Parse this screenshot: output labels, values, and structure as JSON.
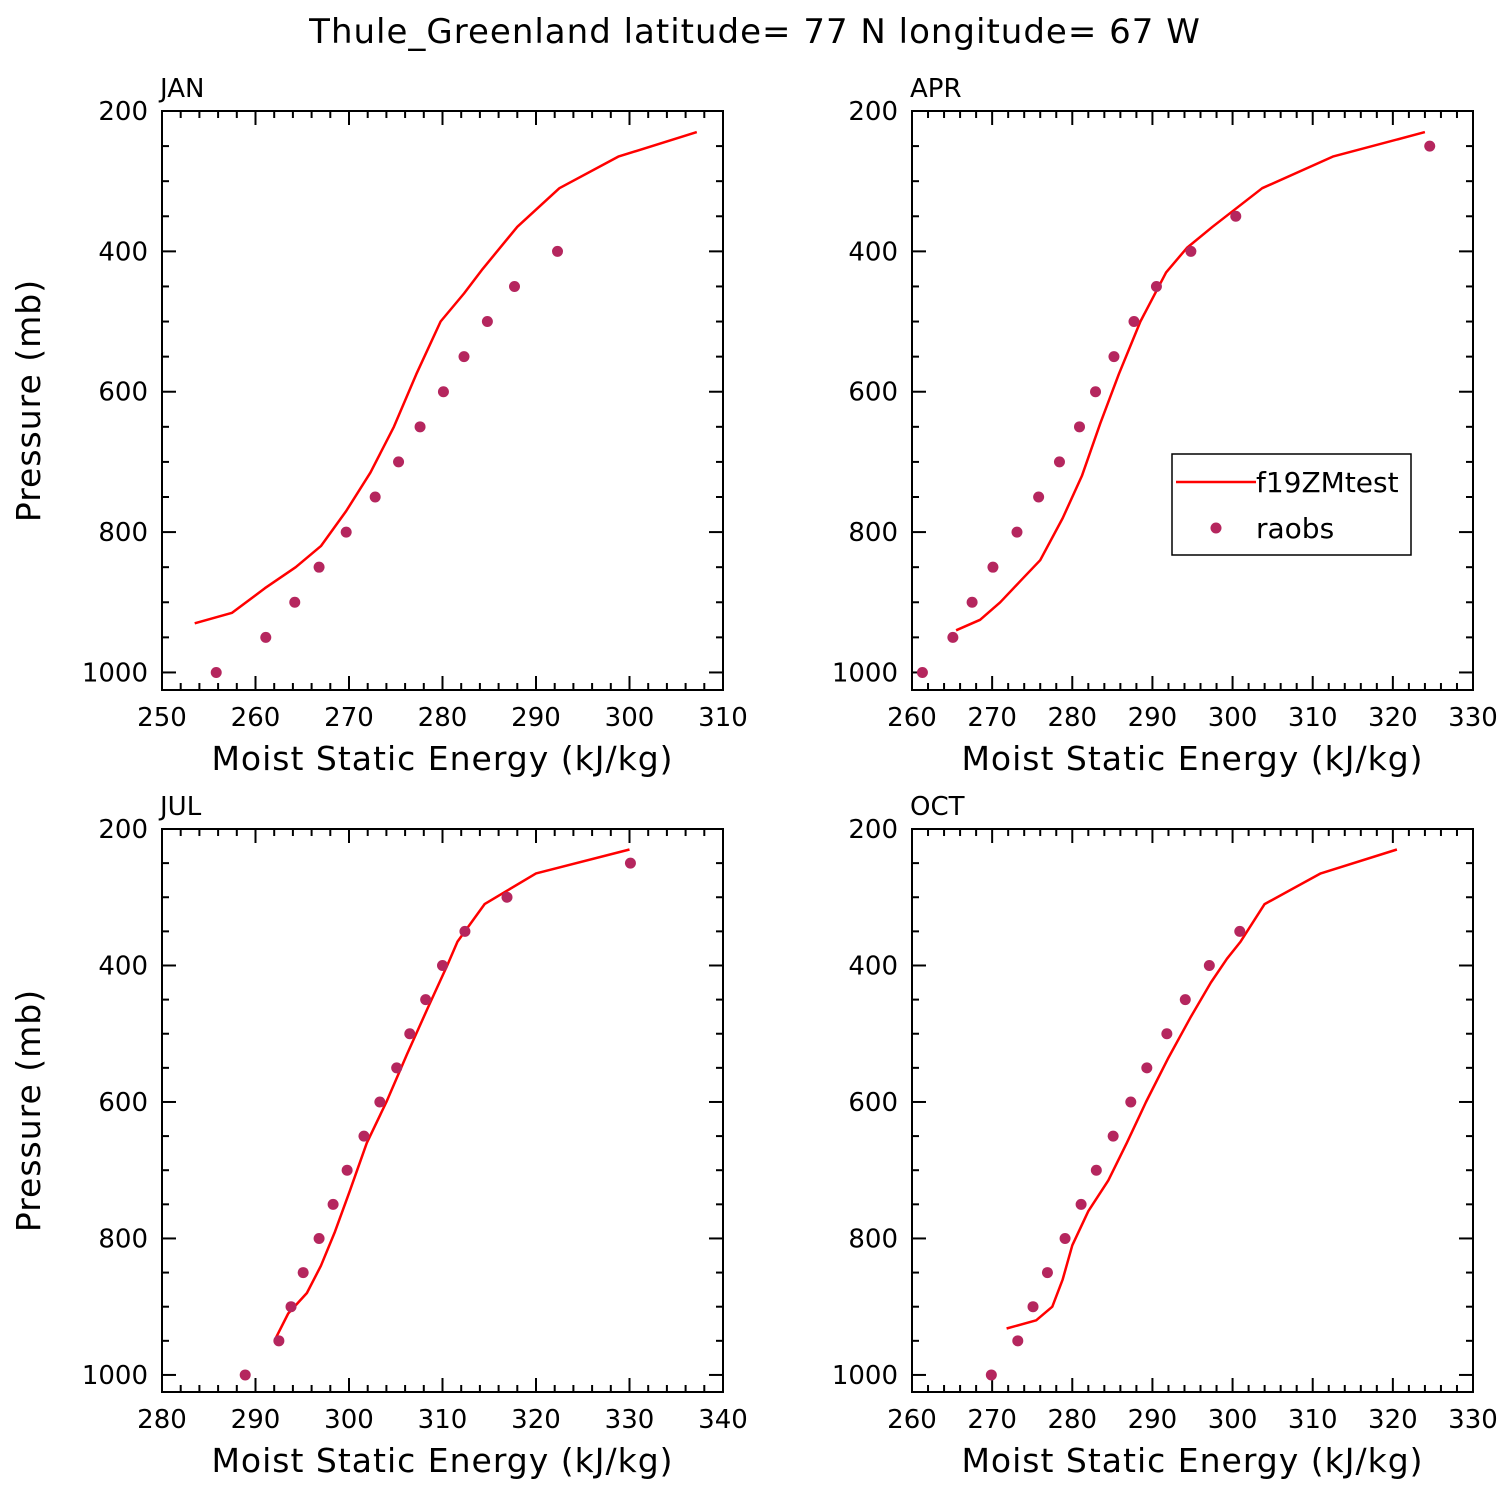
{
  "title": "Thule_Greenland  latitude= 77 N longitude= 67 W",
  "colors": {
    "model": "#ff0000",
    "obs": "#b5265e",
    "axis": "#000000"
  },
  "legend": {
    "model_label": "f19ZMtest",
    "obs_label": "raobs"
  },
  "chart_data": [
    {
      "type": "line+scatter",
      "panel": "JAN",
      "xlabel": "Moist Static Energy (kJ/kg)",
      "ylabel": "Pressure (mb)",
      "xlim": [
        250,
        310
      ],
      "ylim": [
        200,
        1025
      ],
      "xticks": [
        250,
        260,
        270,
        280,
        290,
        300,
        310
      ],
      "yticks": [
        200,
        400,
        600,
        800,
        1000
      ],
      "series": [
        {
          "name": "f19ZMtest",
          "kind": "line",
          "x": [
            253.5,
            257.5,
            261,
            264.3,
            267,
            269.7,
            272.3,
            274.8,
            277.2,
            279.8,
            282.3,
            284.3,
            288,
            292.5,
            298.8,
            307.2
          ],
          "y": [
            930,
            915,
            880,
            850,
            820,
            770,
            715,
            650,
            575,
            500,
            460,
            425,
            365,
            310,
            265,
            230
          ]
        },
        {
          "name": "raobs",
          "kind": "scatter",
          "x": [
            255.8,
            261.1,
            264.2,
            266.8,
            269.7,
            272.8,
            275.3,
            277.6,
            280.1,
            282.3,
            284.8,
            287.7,
            292.3
          ],
          "y": [
            1000,
            950,
            900,
            850,
            800,
            750,
            700,
            650,
            600,
            550,
            500,
            450,
            400
          ]
        }
      ]
    },
    {
      "type": "line+scatter",
      "panel": "APR",
      "legend_position": "right-middle",
      "xlabel": "Moist Static Energy (kJ/kg)",
      "ylabel": "",
      "xlim": [
        260,
        330
      ],
      "ylim": [
        200,
        1025
      ],
      "xticks": [
        260,
        270,
        280,
        290,
        300,
        310,
        320,
        330
      ],
      "yticks": [
        200,
        400,
        600,
        800,
        1000
      ],
      "series": [
        {
          "name": "f19ZMtest",
          "kind": "line",
          "x": [
            265.5,
            268.5,
            271,
            273.5,
            276,
            278.8,
            281.2,
            283.5,
            285.8,
            288.5,
            291.7,
            294.3,
            297.5,
            303.7,
            312.5,
            324
          ],
          "y": [
            940,
            925,
            900,
            870,
            840,
            780,
            720,
            645,
            575,
            500,
            430,
            395,
            365,
            310,
            265,
            230
          ]
        },
        {
          "name": "raobs",
          "kind": "scatter",
          "x": [
            261.3,
            265.1,
            267.5,
            270.1,
            273.1,
            275.8,
            278.4,
            280.9,
            282.9,
            285.2,
            287.7,
            290.5,
            294.8,
            300.4,
            324.6
          ],
          "y": [
            1000,
            950,
            900,
            850,
            800,
            750,
            700,
            650,
            600,
            550,
            500,
            450,
            400,
            350,
            250
          ]
        }
      ]
    },
    {
      "type": "line+scatter",
      "panel": "JUL",
      "xlabel": "Moist Static Energy (kJ/kg)",
      "ylabel": "Pressure (mb)",
      "xlim": [
        280,
        340
      ],
      "ylim": [
        200,
        1025
      ],
      "xticks": [
        280,
        290,
        300,
        310,
        320,
        330,
        340
      ],
      "yticks": [
        200,
        400,
        600,
        800,
        1000
      ],
      "series": [
        {
          "name": "f19ZMtest",
          "kind": "line",
          "x": [
            292.2,
            293.5,
            295.5,
            297,
            298.5,
            300.1,
            301.9,
            304,
            306.2,
            308.5,
            310.5,
            311.6,
            314.5,
            320,
            330
          ],
          "y": [
            945,
            910,
            880,
            840,
            790,
            730,
            660,
            600,
            530,
            460,
            400,
            365,
            310,
            265,
            230
          ]
        },
        {
          "name": "raobs",
          "kind": "scatter",
          "x": [
            288.9,
            292.5,
            293.8,
            295.1,
            296.8,
            298.3,
            299.8,
            301.6,
            303.3,
            305.1,
            306.5,
            308.2,
            310,
            312.4,
            316.9,
            330.1
          ],
          "y": [
            1000,
            950,
            900,
            850,
            800,
            750,
            700,
            650,
            600,
            550,
            500,
            450,
            400,
            350,
            300,
            250
          ]
        }
      ]
    },
    {
      "type": "line+scatter",
      "panel": "OCT",
      "xlabel": "Moist Static Energy (kJ/kg)",
      "ylabel": "",
      "xlim": [
        260,
        330
      ],
      "ylim": [
        200,
        1025
      ],
      "xticks": [
        260,
        270,
        280,
        290,
        300,
        310,
        320,
        330
      ],
      "yticks": [
        200,
        400,
        600,
        800,
        1000
      ],
      "series": [
        {
          "name": "f19ZMtest",
          "kind": "line",
          "x": [
            271.8,
            275.5,
            277.5,
            278.8,
            280,
            282,
            284.5,
            286.8,
            289.2,
            292,
            294.8,
            297.3,
            299.3,
            301,
            304,
            311,
            320.5
          ],
          "y": [
            932,
            920,
            900,
            860,
            810,
            760,
            715,
            660,
            600,
            535,
            475,
            425,
            390,
            365,
            310,
            265,
            230
          ]
        },
        {
          "name": "raobs",
          "kind": "scatter",
          "x": [
            269.9,
            273.2,
            275.1,
            276.9,
            279.1,
            281.1,
            283,
            285.1,
            287.3,
            289.3,
            291.8,
            294.1,
            297.1,
            300.9
          ],
          "y": [
            1000,
            950,
            900,
            850,
            800,
            750,
            700,
            650,
            600,
            550,
            500,
            450,
            400,
            350
          ]
        }
      ]
    }
  ]
}
